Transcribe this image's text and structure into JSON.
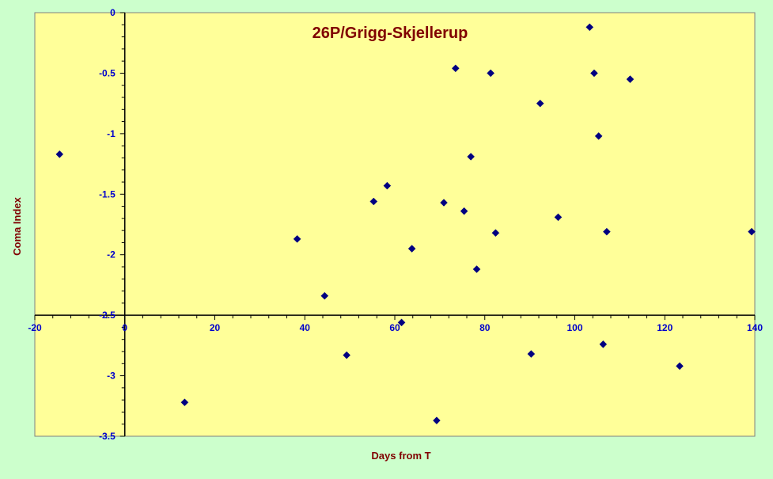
{
  "colors": {
    "page_background": "#ccffcc",
    "plot_background": "#ffff99",
    "title": "#800000",
    "axis_title": "#800000",
    "tick_labels": "#0000cc",
    "axis_line": "#000000",
    "marker": "#000080"
  },
  "chart_data": {
    "type": "scatter",
    "title": "26P/Grigg-Skjellerup",
    "xlabel": "Days from T",
    "ylabel": "Coma Index",
    "xlim": [
      -20,
      140
    ],
    "ylim": [
      -3.5,
      0
    ],
    "x_ticks": [
      -20,
      0,
      20,
      40,
      60,
      80,
      100,
      120,
      140
    ],
    "x_tick_labels": [
      "-20",
      "0",
      "20",
      "40",
      "60",
      "80",
      "100",
      "120",
      "140"
    ],
    "y_ticks": [
      0,
      -0.5,
      -1,
      -1.5,
      -2,
      -2.5,
      -3,
      -3.5
    ],
    "y_tick_labels": [
      "0",
      "-0.5",
      "-1",
      "-1.5",
      "-2",
      "-2.5",
      "-3",
      "-3.5"
    ],
    "x_axis_crosses_y_at": -2.5,
    "y_axis_crosses_x_at": 0,
    "grid": false,
    "legend": "none",
    "marker": "diamond",
    "points": [
      {
        "x": -14.5,
        "y": -1.17
      },
      {
        "x": 13.3,
        "y": -3.22
      },
      {
        "x": 38.3,
        "y": -1.87
      },
      {
        "x": 44.4,
        "y": -2.34
      },
      {
        "x": 49.3,
        "y": -2.83
      },
      {
        "x": 55.3,
        "y": -1.56
      },
      {
        "x": 58.3,
        "y": -1.43
      },
      {
        "x": 61.5,
        "y": -2.56
      },
      {
        "x": 63.8,
        "y": -1.95
      },
      {
        "x": 69.3,
        "y": -3.37
      },
      {
        "x": 70.9,
        "y": -1.57
      },
      {
        "x": 73.5,
        "y": -0.46
      },
      {
        "x": 75.4,
        "y": -1.64
      },
      {
        "x": 76.9,
        "y": -1.19
      },
      {
        "x": 78.2,
        "y": -2.12
      },
      {
        "x": 81.3,
        "y": -0.5
      },
      {
        "x": 82.4,
        "y": -1.82
      },
      {
        "x": 90.3,
        "y": -2.82
      },
      {
        "x": 92.3,
        "y": -0.75
      },
      {
        "x": 96.3,
        "y": -1.69
      },
      {
        "x": 103.3,
        "y": -0.12
      },
      {
        "x": 104.3,
        "y": -0.5
      },
      {
        "x": 105.3,
        "y": -1.02
      },
      {
        "x": 106.3,
        "y": -2.74
      },
      {
        "x": 107.1,
        "y": -1.81
      },
      {
        "x": 112.3,
        "y": -0.55
      },
      {
        "x": 123.3,
        "y": -2.92
      },
      {
        "x": 139.3,
        "y": -1.81
      }
    ]
  }
}
